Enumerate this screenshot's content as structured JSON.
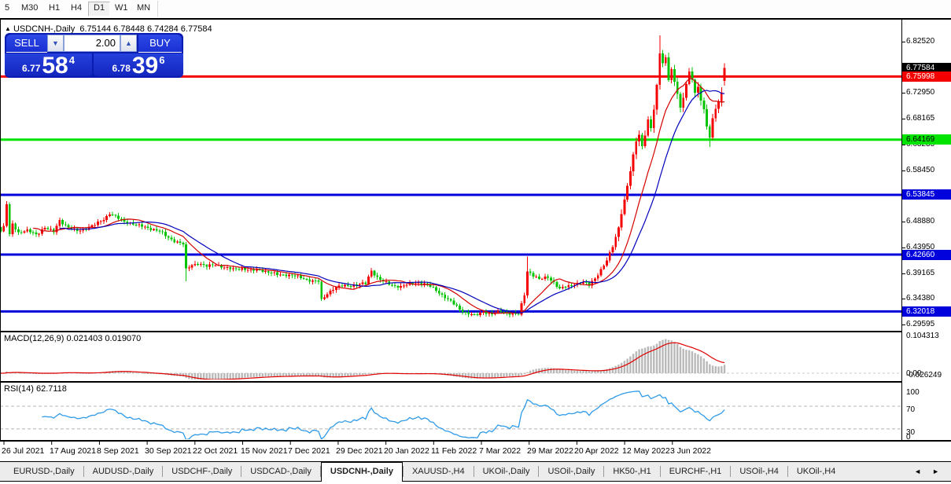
{
  "toolbar": {
    "timeframes": [
      "5",
      "M30",
      "H1",
      "H4",
      "D1",
      "W1",
      "MN"
    ],
    "active": "D1"
  },
  "title": {
    "collapse_icon": "▲",
    "symbol": "USDCNH-,Daily",
    "ohlc": "6.75144 6.78448 6.74284 6.77584"
  },
  "trade_panel": {
    "sell_label": "SELL",
    "buy_label": "BUY",
    "volume": "2.00",
    "down_arrow": "▼",
    "up_arrow": "▲",
    "sell_small": "6.77",
    "sell_big": "58",
    "sell_sup": "4",
    "buy_small": "6.78",
    "buy_big": "39",
    "buy_sup": "6"
  },
  "colors": {
    "up": "#f40000",
    "down": "#00c400",
    "ma_fast": "#d40000",
    "ma_slow": "#0000bb",
    "level_red": "#f40000",
    "level_green": "#00e400",
    "level_blue": "#0202dd",
    "macd_bar": "#b9b9b9",
    "macd_signal": "#e00000",
    "rsi_line": "#2f9be8",
    "box_bid_bg": "#000000",
    "box_red_bg": "#f40000",
    "box_green_bg": "#00e400",
    "box_blue_bg": "#0202dd"
  },
  "chart_data": {
    "type": "candlestick",
    "symbol": "USDCNH-,Daily",
    "bar_count": 247,
    "first_open": 6.478,
    "price_axis": {
      "ticks": [
        {
          "text": "6.82520",
          "price": 6.8252
        },
        {
          "text": "6.72950",
          "price": 6.7295
        },
        {
          "text": "6.68165",
          "price": 6.68165
        },
        {
          "text": "6.63235",
          "price": 6.63235
        },
        {
          "text": "6.58450",
          "price": 6.5845
        },
        {
          "text": "6.48880",
          "price": 6.4888
        },
        {
          "text": "6.43950",
          "price": 6.4395
        },
        {
          "text": "6.39165",
          "price": 6.39165
        },
        {
          "text": "6.34380",
          "price": 6.3438
        },
        {
          "text": "6.29595",
          "price": 6.29595
        }
      ],
      "boxes": [
        {
          "text": "6.77584",
          "price": 6.77584,
          "type": "bid"
        },
        {
          "text": "6.75998",
          "price": 6.75998,
          "type": "red"
        },
        {
          "text": "6.64169",
          "price": 6.64169,
          "type": "green"
        },
        {
          "text": "6.53845",
          "price": 6.53845,
          "type": "blue"
        },
        {
          "text": "6.42660",
          "price": 6.4266,
          "type": "blue"
        },
        {
          "text": "6.32018",
          "price": 6.32018,
          "type": "blue"
        }
      ]
    },
    "levels": [
      {
        "price": 6.75998,
        "color_key": "level_red"
      },
      {
        "price": 6.64169,
        "color_key": "level_green"
      },
      {
        "price": 6.53845,
        "color_key": "level_blue"
      },
      {
        "price": 6.4266,
        "color_key": "level_blue"
      },
      {
        "price": 6.32018,
        "color_key": "level_blue"
      }
    ],
    "candle_anchors": [
      [
        0,
        6.47
      ],
      [
        1,
        6.48
      ],
      [
        2,
        6.521
      ],
      [
        3,
        6.465
      ],
      [
        4,
        6.485
      ],
      [
        6,
        6.468
      ],
      [
        9,
        6.471
      ],
      [
        12,
        6.465
      ],
      [
        15,
        6.477
      ],
      [
        18,
        6.469
      ],
      [
        20,
        6.491
      ],
      [
        23,
        6.477
      ],
      [
        26,
        6.471
      ],
      [
        29,
        6.476
      ],
      [
        32,
        6.482
      ],
      [
        35,
        6.493
      ],
      [
        37,
        6.504
      ],
      [
        39,
        6.497
      ],
      [
        42,
        6.489
      ],
      [
        46,
        6.482
      ],
      [
        50,
        6.477
      ],
      [
        54,
        6.47
      ],
      [
        57,
        6.458
      ],
      [
        60,
        6.45
      ],
      [
        62,
        6.446
      ],
      [
        63,
        6.398
      ],
      [
        65,
        6.408
      ],
      [
        67,
        6.41
      ],
      [
        70,
        6.404
      ],
      [
        73,
        6.409
      ],
      [
        76,
        6.402
      ],
      [
        79,
        6.399
      ],
      [
        82,
        6.401
      ],
      [
        85,
        6.396
      ],
      [
        88,
        6.399
      ],
      [
        91,
        6.393
      ],
      [
        94,
        6.389
      ],
      [
        97,
        6.389
      ],
      [
        100,
        6.386
      ],
      [
        103,
        6.382
      ],
      [
        106,
        6.377
      ],
      [
        108,
        6.376
      ],
      [
        109,
        6.341
      ],
      [
        111,
        6.354
      ],
      [
        113,
        6.363
      ],
      [
        116,
        6.368
      ],
      [
        119,
        6.369
      ],
      [
        122,
        6.371
      ],
      [
        124,
        6.372
      ],
      [
        126,
        6.397
      ],
      [
        128,
        6.384
      ],
      [
        130,
        6.376
      ],
      [
        133,
        6.369
      ],
      [
        136,
        6.367
      ],
      [
        139,
        6.371
      ],
      [
        142,
        6.375
      ],
      [
        145,
        6.37
      ],
      [
        148,
        6.36
      ],
      [
        151,
        6.347
      ],
      [
        154,
        6.334
      ],
      [
        156,
        6.325
      ],
      [
        158,
        6.318
      ],
      [
        161,
        6.312
      ],
      [
        164,
        6.32
      ],
      [
        167,
        6.315
      ],
      [
        170,
        6.321
      ],
      [
        173,
        6.317
      ],
      [
        176,
        6.314
      ],
      [
        178,
        6.352
      ],
      [
        179,
        6.396
      ],
      [
        181,
        6.388
      ],
      [
        183,
        6.38
      ],
      [
        186,
        6.385
      ],
      [
        188,
        6.375
      ],
      [
        190,
        6.362
      ],
      [
        192,
        6.366
      ],
      [
        195,
        6.372
      ],
      [
        198,
        6.374
      ],
      [
        200,
        6.37
      ],
      [
        202,
        6.383
      ],
      [
        204,
        6.398
      ],
      [
        206,
        6.415
      ],
      [
        208,
        6.442
      ],
      [
        210,
        6.478
      ],
      [
        211,
        6.505
      ],
      [
        212,
        6.528
      ],
      [
        213,
        6.555
      ],
      [
        214,
        6.582
      ],
      [
        215,
        6.612
      ],
      [
        216,
        6.64
      ],
      [
        217,
        6.652
      ],
      [
        218,
        6.63
      ],
      [
        219,
        6.652
      ],
      [
        220,
        6.678
      ],
      [
        221,
        6.662
      ],
      [
        222,
        6.698
      ],
      [
        223,
        6.742
      ],
      [
        224,
        6.805
      ],
      [
        225,
        6.786
      ],
      [
        226,
        6.795
      ],
      [
        227,
        6.755
      ],
      [
        228,
        6.772
      ],
      [
        229,
        6.748
      ],
      [
        230,
        6.728
      ],
      [
        231,
        6.7
      ],
      [
        232,
        6.722
      ],
      [
        233,
        6.748
      ],
      [
        234,
        6.768
      ],
      [
        235,
        6.755
      ],
      [
        236,
        6.728
      ],
      [
        237,
        6.738
      ],
      [
        238,
        6.716
      ],
      [
        239,
        6.698
      ],
      [
        240,
        6.668
      ],
      [
        241,
        6.648
      ],
      [
        242,
        6.68
      ],
      [
        243,
        6.7
      ],
      [
        244,
        6.712
      ],
      [
        245,
        6.728
      ],
      [
        246,
        6.776
      ]
    ],
    "specials": {
      "2": {
        "h": 6.527
      },
      "63": {
        "l": 6.377
      },
      "179": {
        "h": 6.423
      },
      "224": {
        "h": 6.837
      },
      "241": {
        "l": 6.628
      },
      "246": {
        "o": 6.75144,
        "h": 6.78448,
        "l": 6.74284,
        "c": 6.77584
      }
    },
    "macd": {
      "label": "MACD(12,26,9) 0.021403 0.019070",
      "axis_values": [
        {
          "text": "0.104313",
          "v": 0.104313
        },
        {
          "text": "0.00",
          "v": 0.0
        },
        {
          "text": "-0.026249",
          "v": -0.026249
        }
      ]
    },
    "rsi": {
      "label": "RSI(14) 62.7118",
      "axis_values": [
        {
          "text": "100",
          "v": 100
        },
        {
          "text": "70",
          "v": 70
        },
        {
          "text": "30",
          "v": 30
        },
        {
          "text": "0",
          "v": 0
        }
      ],
      "guides": [
        70,
        30
      ]
    },
    "x_dates": [
      "26 Jul 2021",
      "17 Aug 2021",
      "8 Sep 2021",
      "30 Sep 2021",
      "22 Oct 2021",
      "15 Nov 2021",
      "7 Dec 2021",
      "29 Dec 2021",
      "20 Jan 2022",
      "11 Feb 2022",
      "7 Mar 2022",
      "29 Mar 2022",
      "20 Apr 2022",
      "12 May 2022",
      "3 Jun 2022"
    ]
  },
  "tabs": {
    "items": [
      "EURUSD-,Daily",
      "AUDUSD-,Daily",
      "USDCHF-,Daily",
      "USDCAD-,Daily",
      "USDCNH-,Daily",
      "XAUUSD-,H4",
      "UKOil-,Daily",
      "USOil-,Daily",
      "HK50-,H1",
      "EURCHF-,H1",
      "USOil-,H4",
      "UKOil-,H4"
    ],
    "active_index": 4,
    "scroll_left": "◄",
    "scroll_right": "►"
  }
}
